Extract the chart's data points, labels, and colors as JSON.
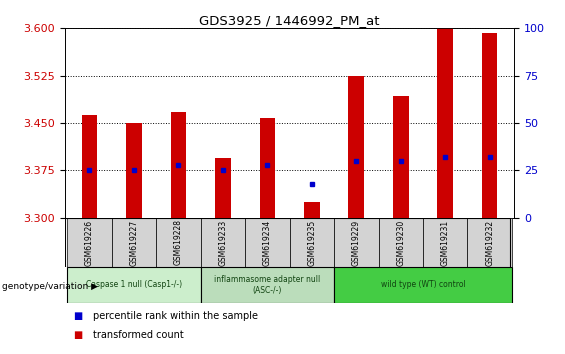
{
  "title": "GDS3925 / 1446992_PM_at",
  "samples": [
    "GSM619226",
    "GSM619227",
    "GSM619228",
    "GSM619233",
    "GSM619234",
    "GSM619235",
    "GSM619229",
    "GSM619230",
    "GSM619231",
    "GSM619232"
  ],
  "bar_values": [
    3.462,
    3.45,
    3.468,
    3.395,
    3.458,
    3.325,
    3.525,
    3.493,
    3.6,
    3.593
  ],
  "percentile_values": [
    25,
    25,
    28,
    25,
    28,
    18,
    30,
    30,
    32,
    32
  ],
  "ylim": [
    3.3,
    3.6
  ],
  "yticks": [
    3.3,
    3.375,
    3.45,
    3.525,
    3.6
  ],
  "right_yticks": [
    0,
    25,
    50,
    75,
    100
  ],
  "bar_color": "#cc0000",
  "percentile_color": "#0000cc",
  "plot_bg": "#ffffff",
  "groups": [
    {
      "label": "Caspase 1 null (Casp1-/-)",
      "start": 0,
      "end": 3,
      "color": "#cceecc"
    },
    {
      "label": "inflammasome adapter null\n(ASC-/-)",
      "start": 3,
      "end": 6,
      "color": "#bbddbb"
    },
    {
      "label": "wild type (WT) control",
      "start": 6,
      "end": 10,
      "color": "#44cc44"
    }
  ],
  "legend_labels": [
    "transformed count",
    "percentile rank within the sample"
  ],
  "legend_colors": [
    "#cc0000",
    "#0000cc"
  ],
  "genotype_label": "genotype/variation"
}
